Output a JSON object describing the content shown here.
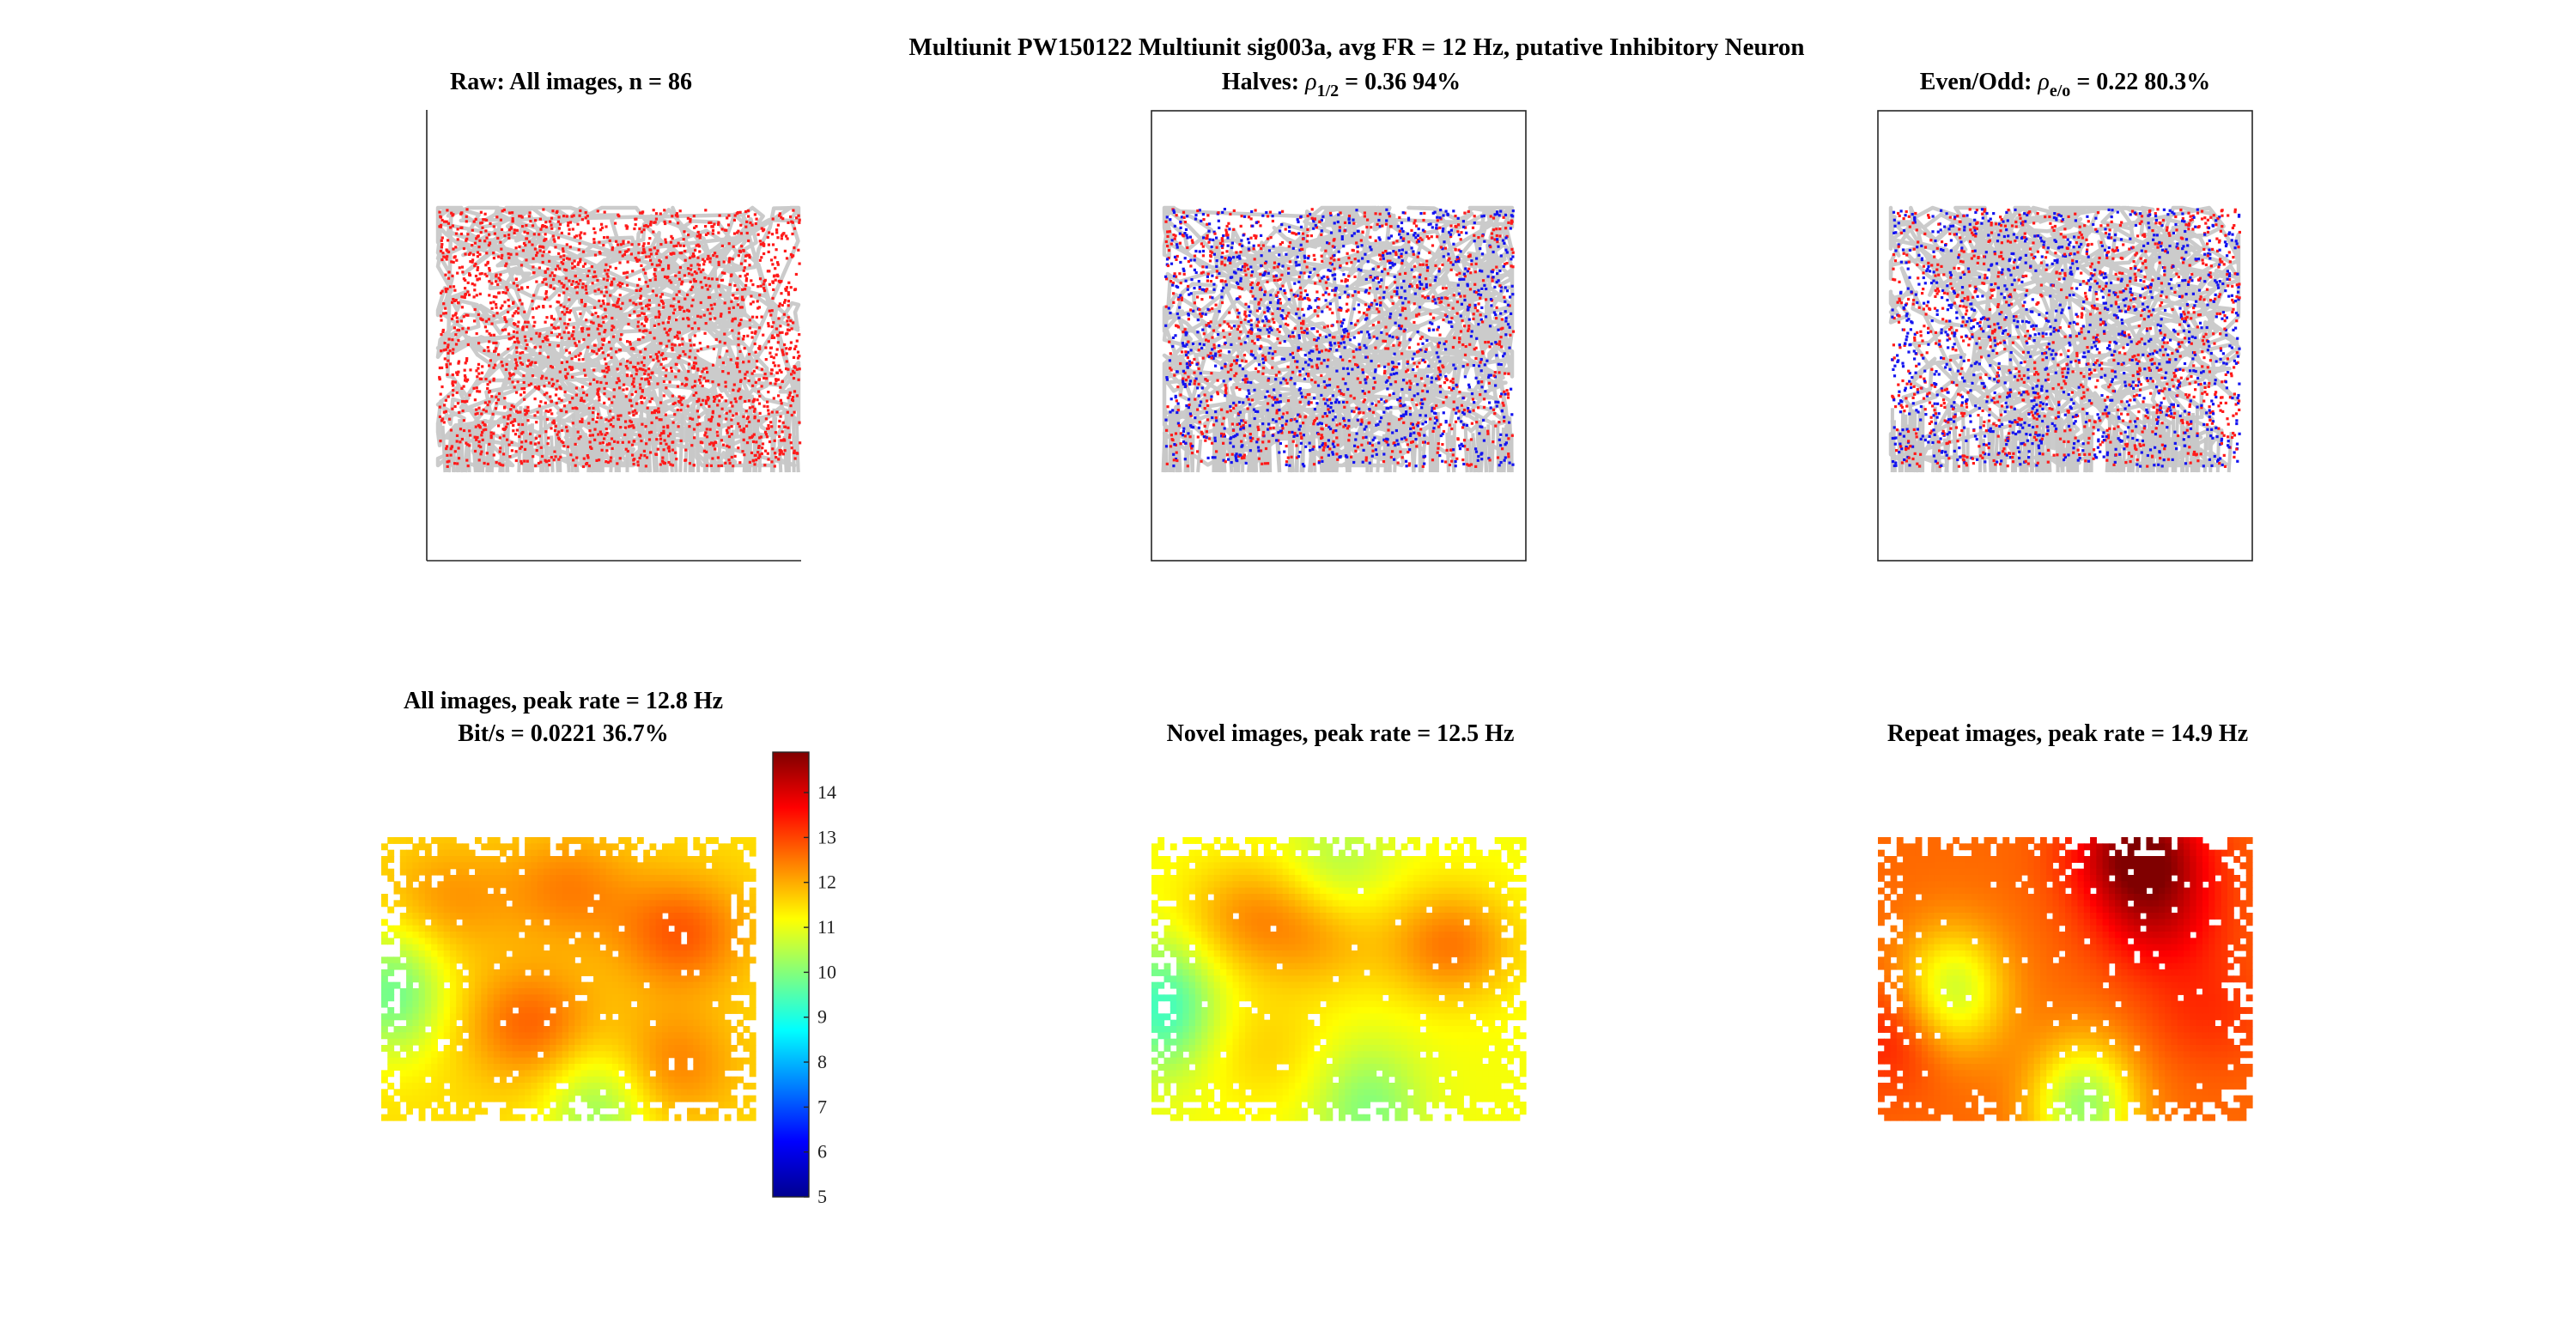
{
  "figure": {
    "suptitle": "Multiunit PW150122 Multiunit sig003a, avg FR = 12 Hz, putative Inhibitory Neuron"
  },
  "panels": {
    "raw": {
      "title": "Raw: All images, n = 86"
    },
    "halves": {
      "title_prefix": "Halves: ",
      "rho": "ρ",
      "sub": "1/2",
      "title_suffix": " = 0.36 94%"
    },
    "evenodd": {
      "title_prefix": "Even/Odd: ",
      "rho": "ρ",
      "sub": "e/o",
      "title_suffix": " = 0.22 80.3%"
    },
    "all_map": {
      "title_line1": "All images, peak rate = 12.8 Hz",
      "title_line2": "Bit/s = 0.0221 36.7%"
    },
    "novel_map": {
      "title": "Novel images, peak rate = 12.5 Hz"
    },
    "repeat_map": {
      "title": "Repeat images, peak rate = 14.9 Hz"
    }
  },
  "colors": {
    "trajectory": "#c8c8c8",
    "spike_a": "#ff1a1a",
    "spike_b": "#1414f0",
    "axes": "#262626"
  },
  "chart_data": [
    {
      "type": "scatter",
      "title": "Raw: All images, n = 86",
      "series": [
        {
          "color": "#c8c8c8",
          "approx_points": "eye-tracking trajectory"
        },
        {
          "color": "#ff1a1a",
          "approx_points": 3000
        }
      ]
    },
    {
      "type": "scatter",
      "title": "Halves: ρ1/2 = 0.36 94%",
      "series": [
        {
          "color": "#c8c8c8"
        },
        {
          "color": "#ff1a1a",
          "approx_points": 1500
        },
        {
          "color": "#1414f0",
          "approx_points": 1500
        }
      ]
    },
    {
      "type": "scatter",
      "title": "Even/Odd: ρe/o = 0.22 80.3%",
      "series": [
        {
          "color": "#c8c8c8"
        },
        {
          "color": "#ff1a1a",
          "approx_points": 1500
        },
        {
          "color": "#1414f0",
          "approx_points": 1500
        }
      ]
    },
    {
      "type": "heatmap",
      "title": "All images, peak rate = 12.8 Hz",
      "subtitle": "Bit/s = 0.0221 36.7%",
      "grid": {
        "cols": 60,
        "rows": 45
      },
      "value_range": [
        9.8,
        12.8
      ],
      "hotspots": [
        {
          "cx": 0.8,
          "cy": 0.34,
          "rate": 12.8
        },
        {
          "cx": 0.4,
          "cy": 0.66,
          "rate": 12.7
        },
        {
          "cx": 0.5,
          "cy": 0.18,
          "rate": 12.4
        },
        {
          "cx": 0.18,
          "cy": 0.22,
          "rate": 12.2
        },
        {
          "cx": 0.78,
          "cy": 0.8,
          "rate": 12.4
        }
      ],
      "lowspots": [
        {
          "cx": 0.03,
          "cy": 0.55,
          "rate": 9.8
        },
        {
          "cx": 0.58,
          "cy": 0.96,
          "rate": 10.2
        }
      ]
    },
    {
      "type": "heatmap",
      "title": "Novel images, peak rate = 12.5 Hz",
      "grid": {
        "cols": 60,
        "rows": 45
      },
      "value_range": [
        9.3,
        12.5
      ],
      "hotspots": [
        {
          "cx": 0.8,
          "cy": 0.38,
          "rate": 12.5
        },
        {
          "cx": 0.25,
          "cy": 0.28,
          "rate": 12.1
        },
        {
          "cx": 0.45,
          "cy": 0.35,
          "rate": 12.0
        },
        {
          "cx": 0.3,
          "cy": 0.75,
          "rate": 11.6
        }
      ],
      "lowspots": [
        {
          "cx": 0.03,
          "cy": 0.6,
          "rate": 9.3
        },
        {
          "cx": 0.5,
          "cy": 0.1,
          "rate": 10.4
        },
        {
          "cx": 0.58,
          "cy": 0.96,
          "rate": 10.0
        }
      ]
    },
    {
      "type": "heatmap",
      "title": "Repeat images, peak rate = 14.9 Hz",
      "grid": {
        "cols": 60,
        "rows": 45
      },
      "value_range": [
        10.0,
        14.9
      ],
      "hotspots": [
        {
          "cx": 0.7,
          "cy": 0.06,
          "rate": 14.9
        },
        {
          "cx": 0.75,
          "cy": 0.3,
          "rate": 13.8
        },
        {
          "cx": 0.05,
          "cy": 0.7,
          "rate": 13.5
        },
        {
          "cx": 0.88,
          "cy": 0.62,
          "rate": 13.2
        }
      ],
      "lowspots": [
        {
          "cx": 0.2,
          "cy": 0.55,
          "rate": 10.6
        },
        {
          "cx": 0.55,
          "cy": 0.95,
          "rate": 10.2
        }
      ]
    }
  ],
  "colorbar": {
    "ticks": [
      "14",
      "13",
      "12",
      "11",
      "10",
      "9",
      "8",
      "7",
      "6",
      "5"
    ],
    "range": [
      5,
      14.9
    ],
    "colormap": "jet"
  }
}
